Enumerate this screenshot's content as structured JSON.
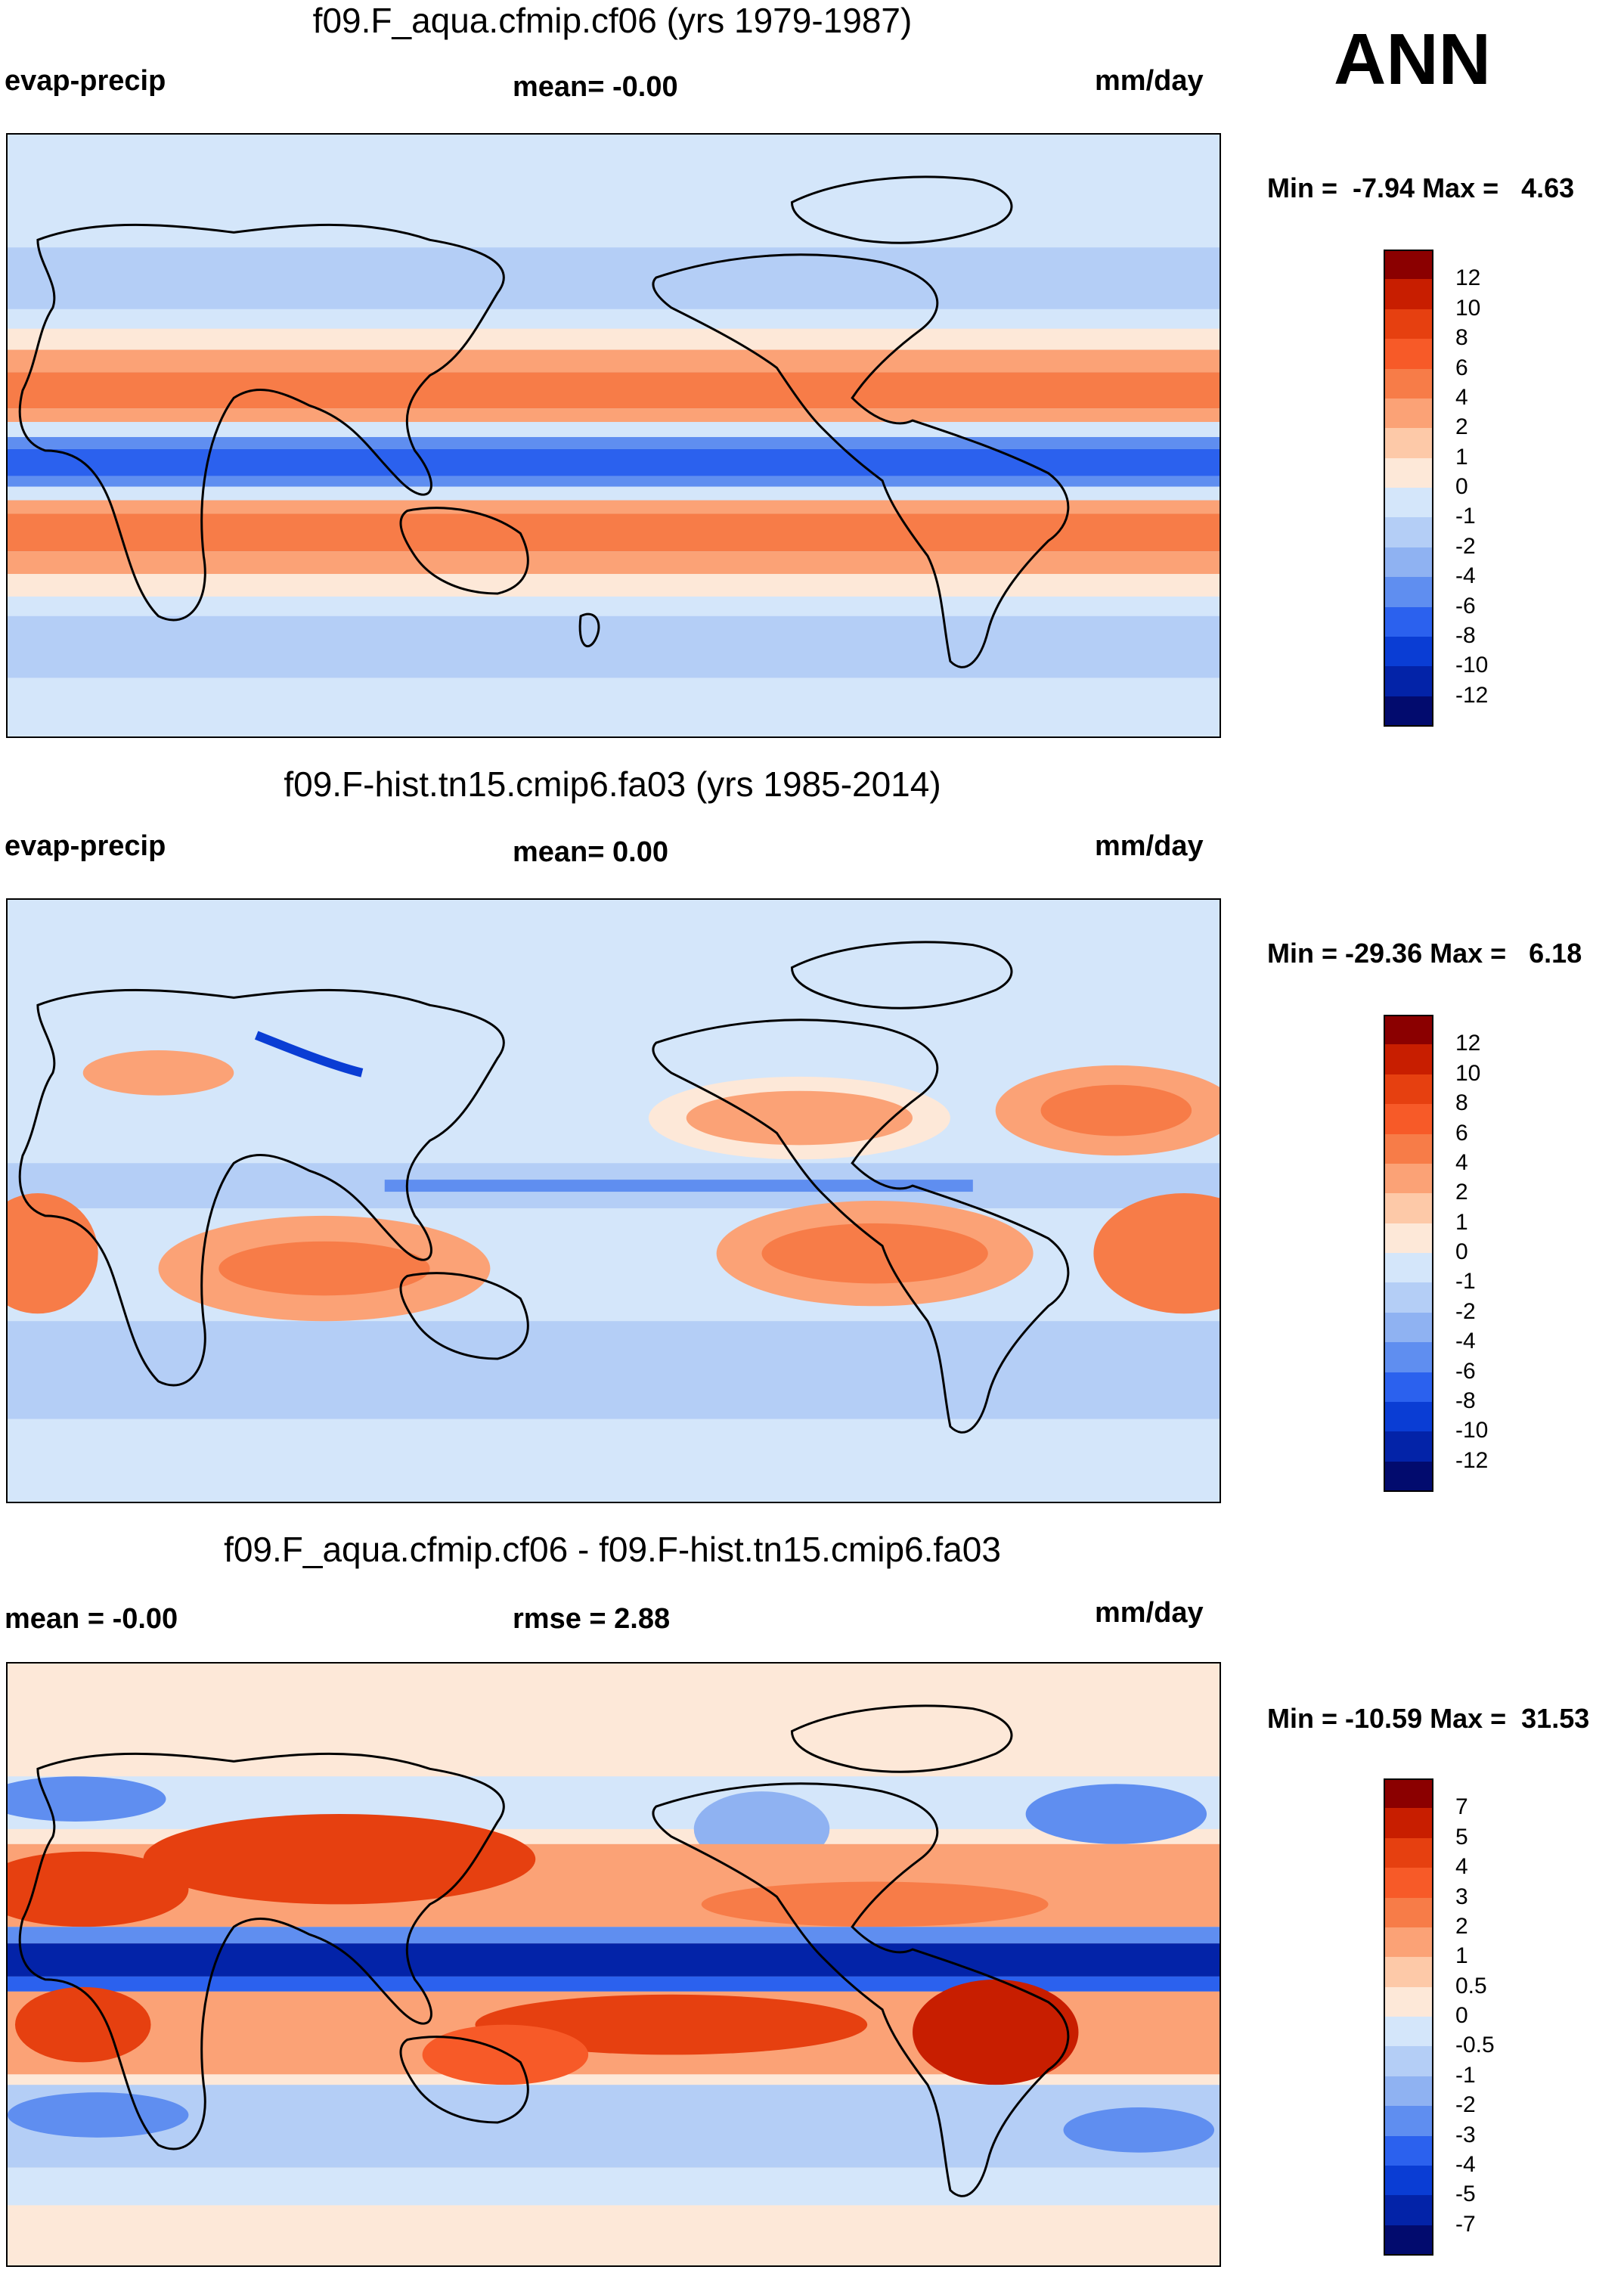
{
  "season": "ANN",
  "units": "mm/day",
  "panels": [
    {
      "title": "f09.F_aqua.cfmip.cf06 (yrs 1979-1987)",
      "left_label": "evap-precip",
      "center_label": "mean=  -0.00",
      "right_label": "mm/day",
      "minmax": "Min =  -7.94 Max =   4.63"
    },
    {
      "title": "f09.F-hist.tn15.cmip6.fa03 (yrs 1985-2014)",
      "left_label": "evap-precip",
      "center_label": "mean=   0.00",
      "right_label": "mm/day",
      "minmax": "Min = -29.36 Max =   6.18"
    },
    {
      "title": "f09.F_aqua.cfmip.cf06 - f09.F-hist.tn15.cmip6.fa03",
      "left_label": "mean =  -0.00",
      "center_label": "rmse =   2.88",
      "right_label": "mm/day",
      "minmax": "Min = -10.59 Max =  31.53"
    }
  ],
  "colorbars": [
    {
      "labels": [
        "12",
        "10",
        "8",
        "6",
        "4",
        "2",
        "1",
        "0",
        "-1",
        "-2",
        "-4",
        "-6",
        "-8",
        "-10",
        "-12"
      ],
      "colors": [
        "#8b0000",
        "#c81e00",
        "#e64010",
        "#f75a28",
        "#f77c48",
        "#fba276",
        "#fdc9a8",
        "#fde8d8",
        "#d4e6fa",
        "#b4cef6",
        "#8fb2f2",
        "#5f8ef0",
        "#2b61ee",
        "#0a3dd4",
        "#0323a8",
        "#020b6e"
      ]
    },
    {
      "labels": [
        "12",
        "10",
        "8",
        "6",
        "4",
        "2",
        "1",
        "0",
        "-1",
        "-2",
        "-4",
        "-6",
        "-8",
        "-10",
        "-12"
      ],
      "colors": [
        "#8b0000",
        "#c81e00",
        "#e64010",
        "#f75a28",
        "#f77c48",
        "#fba276",
        "#fdc9a8",
        "#fde8d8",
        "#d4e6fa",
        "#b4cef6",
        "#8fb2f2",
        "#5f8ef0",
        "#2b61ee",
        "#0a3dd4",
        "#0323a8",
        "#020b6e"
      ]
    },
    {
      "labels": [
        "7",
        "5",
        "4",
        "3",
        "2",
        "1",
        "0.5",
        "0",
        "-0.5",
        "-1",
        "-2",
        "-3",
        "-4",
        "-5",
        "-7"
      ],
      "colors": [
        "#8b0000",
        "#c81e00",
        "#e64010",
        "#f75a28",
        "#f77c48",
        "#fba276",
        "#fdc9a8",
        "#fde8d8",
        "#d4e6fa",
        "#b4cef6",
        "#8fb2f2",
        "#5f8ef0",
        "#2b61ee",
        "#0a3dd4",
        "#0323a8",
        "#020b6e"
      ]
    }
  ],
  "chart_data": [
    {
      "type": "heatmap",
      "title": "f09.F_aqua.cfmip.cf06 (yrs 1979-1987)",
      "variable": "evap-precip",
      "mean": -0.0,
      "min": -7.94,
      "max": 4.63,
      "bands_by_latitude": [
        {
          "lat_range": [
            60,
            90
          ],
          "class": "-1"
        },
        {
          "lat_range": [
            30,
            60
          ],
          "class": "-2"
        },
        {
          "lat_range": [
            22,
            30
          ],
          "class": "1"
        },
        {
          "lat_range": [
            8,
            22
          ],
          "class": "4"
        },
        {
          "lat_range": [
            3,
            8
          ],
          "class": "-1"
        },
        {
          "lat_range": [
            -3,
            3
          ],
          "class": "-8"
        },
        {
          "lat_range": [
            -8,
            -3
          ],
          "class": "-1"
        },
        {
          "lat_range": [
            -22,
            -8
          ],
          "class": "4"
        },
        {
          "lat_range": [
            -30,
            -22
          ],
          "class": "1"
        },
        {
          "lat_range": [
            -60,
            -30
          ],
          "class": "-2"
        },
        {
          "lat_range": [
            -90,
            -60
          ],
          "class": "-1"
        }
      ]
    },
    {
      "type": "heatmap",
      "title": "f09.F-hist.tn15.cmip6.fa03 (yrs 1985-2014)",
      "variable": "evap-precip",
      "mean": 0.0,
      "min": -29.36,
      "max": 6.18
    },
    {
      "type": "heatmap",
      "title": "f09.F_aqua.cfmip.cf06 - f09.F-hist.tn15.cmip6.fa03",
      "variable": "evap-precip difference",
      "mean": -0.0,
      "rmse": 2.88,
      "min": -10.59,
      "max": 31.53
    }
  ]
}
